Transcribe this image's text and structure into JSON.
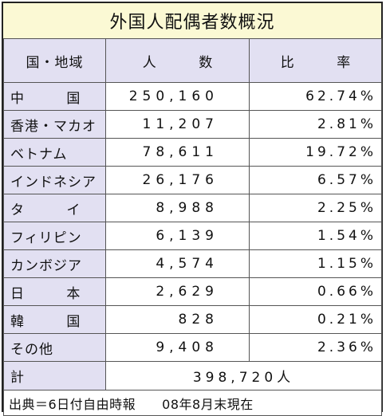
{
  "title": "外国人配偶者数概況",
  "headers": {
    "country": "国・地域",
    "count": "人 数",
    "ratio": "比 率"
  },
  "rows": [
    {
      "name": "中 国",
      "count": "250,160",
      "ratio": "62.74%"
    },
    {
      "name": "香港・マカオ",
      "count": "11,207",
      "ratio": "2.81%"
    },
    {
      "name": "ベトナム",
      "count": "78,611",
      "ratio": "19.72%"
    },
    {
      "name": "インドネシア",
      "count": "26,176",
      "ratio": "6.57%"
    },
    {
      "name": "タ イ",
      "count": "8,988",
      "ratio": "2.25%"
    },
    {
      "name": "フィリピン",
      "count": "6,139",
      "ratio": "1.54%"
    },
    {
      "name": "カンボジア",
      "count": "4,574",
      "ratio": "1.15%"
    },
    {
      "name": "日 本",
      "count": "2,629",
      "ratio": "0.66%"
    },
    {
      "name": "韓 国",
      "count": "828",
      "ratio": "0.21%"
    },
    {
      "name": "その他",
      "count": "9,408",
      "ratio": "2.36%"
    }
  ],
  "total": {
    "label": "計",
    "value": "398,720人"
  },
  "source": "出典＝6日付自由時報　　08年8月末現在",
  "colors": {
    "title_bg": "#fbf9d4",
    "label_bg": "#e2e0f2",
    "border": "#222222"
  }
}
